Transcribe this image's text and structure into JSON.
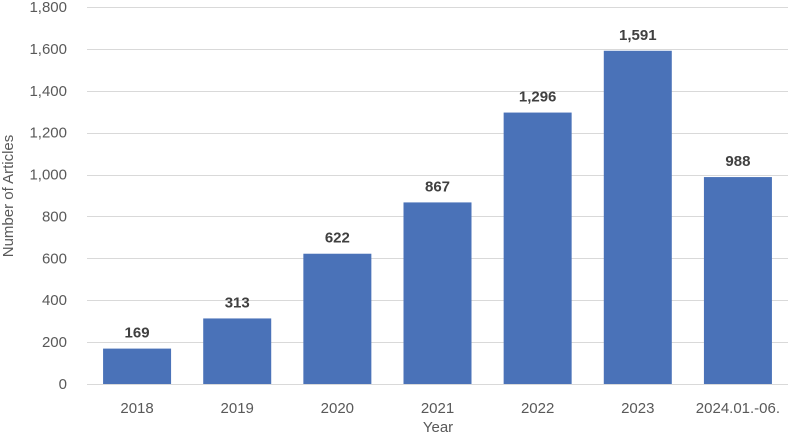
{
  "chart_data": {
    "type": "bar",
    "categories": [
      "2018",
      "2019",
      "2020",
      "2021",
      "2022",
      "2023",
      "2024.01.-06."
    ],
    "values": [
      169,
      313,
      622,
      867,
      1296,
      1591,
      988
    ],
    "data_labels": [
      "169",
      "313",
      "622",
      "867",
      "1,296",
      "1,591",
      "988"
    ],
    "xlabel": "Year",
    "ylabel": "Number of Articles",
    "ylim": [
      0,
      1800
    ],
    "yticks": [
      0,
      200,
      400,
      600,
      800,
      1000,
      1200,
      1400,
      1600,
      1800
    ],
    "ytick_labels": [
      "0",
      "200",
      "400",
      "600",
      "800",
      "1,000",
      "1,200",
      "1,400",
      "1,600",
      "1,800"
    ],
    "grid": true,
    "bar_color": "#4a72b8"
  }
}
